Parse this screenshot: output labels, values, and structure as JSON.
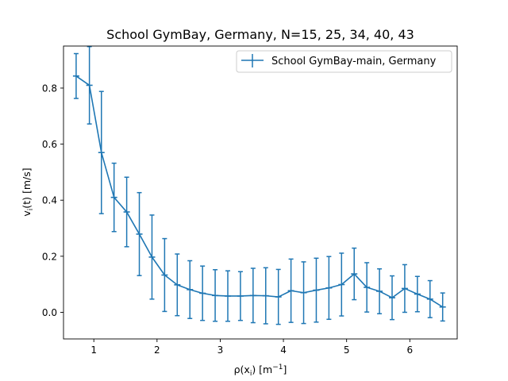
{
  "chart_data": {
    "type": "line",
    "title": "School GymBay, Germany, N=15, 25, 34, 40, 43",
    "xlabel": "ρ(x",
    "xlabel_sub": "i",
    "xlabel_rest": ") [m",
    "xlabel_sup": "−1",
    "xlabel_end": "]",
    "ylabel": "v",
    "ylabel_sub": "i",
    "ylabel_rest": "(t) [m/s]",
    "xlim": [
      0.52,
      6.75
    ],
    "ylim": [
      -0.095,
      0.95
    ],
    "x_ticks": [
      1,
      2,
      3,
      4,
      5,
      6
    ],
    "y_ticks": [
      0.0,
      0.2,
      0.4,
      0.6,
      0.8
    ],
    "y_tick_labels": [
      "0.0",
      "0.2",
      "0.4",
      "0.6",
      "0.8"
    ],
    "legend_position": "top-right",
    "color": "#1f77b4",
    "series": [
      {
        "name": "School GymBay-main, Germany",
        "x": [
          0.72,
          0.93,
          1.12,
          1.32,
          1.52,
          1.72,
          1.92,
          2.12,
          2.32,
          2.52,
          2.72,
          2.92,
          3.12,
          3.32,
          3.52,
          3.72,
          3.92,
          4.12,
          4.32,
          4.52,
          4.72,
          4.92,
          5.12,
          5.32,
          5.52,
          5.72,
          5.92,
          6.12,
          6.32,
          6.52
        ],
        "y": [
          0.843,
          0.81,
          0.57,
          0.41,
          0.358,
          0.279,
          0.197,
          0.133,
          0.098,
          0.081,
          0.068,
          0.06,
          0.058,
          0.058,
          0.06,
          0.059,
          0.055,
          0.077,
          0.07,
          0.079,
          0.087,
          0.099,
          0.137,
          0.089,
          0.075,
          0.052,
          0.085,
          0.065,
          0.047,
          0.019
        ],
        "yerr": [
          0.08,
          0.138,
          0.218,
          0.122,
          0.124,
          0.148,
          0.15,
          0.13,
          0.11,
          0.103,
          0.097,
          0.092,
          0.09,
          0.087,
          0.097,
          0.1,
          0.098,
          0.113,
          0.11,
          0.114,
          0.112,
          0.112,
          0.092,
          0.088,
          0.08,
          0.078,
          0.085,
          0.063,
          0.066,
          0.05
        ]
      }
    ]
  }
}
